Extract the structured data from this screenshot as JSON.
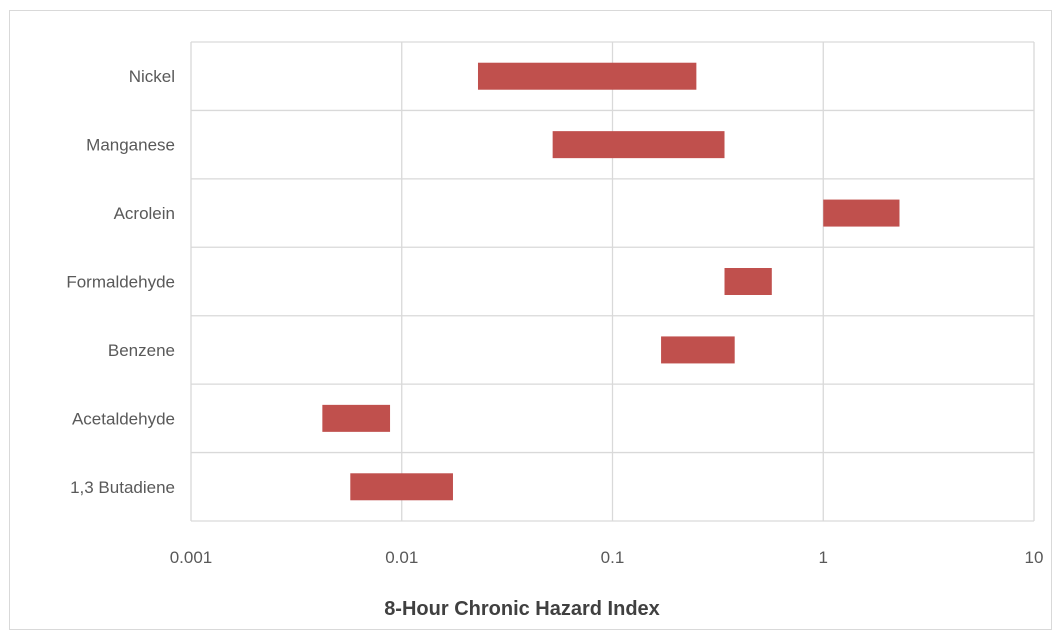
{
  "chart_data": {
    "type": "bar",
    "orientation": "horizontal",
    "subtype": "floating-range",
    "title": "",
    "xlabel": "8-Hour Chronic Hazard Index",
    "ylabel": "",
    "x_scale": "log",
    "xlim": [
      0.001,
      10
    ],
    "x_ticks": [
      0.001,
      0.01,
      0.1,
      1,
      10
    ],
    "x_tick_labels": [
      "0.001",
      "0.01",
      "0.1",
      "1",
      "10"
    ],
    "grid": true,
    "legend": "none",
    "bar_color": "#c0504d",
    "categories": [
      "Nickel",
      "Manganese",
      "Acrolein",
      "Formaldehyde",
      "Benzene",
      "Acetaldehyde",
      "1,3 Butadiene"
    ],
    "ranges": [
      [
        0.023,
        0.25
      ],
      [
        0.052,
        0.34
      ],
      [
        1.0,
        2.3
      ],
      [
        0.34,
        0.57
      ],
      [
        0.17,
        0.38
      ],
      [
        0.0042,
        0.0088
      ],
      [
        0.0057,
        0.0175
      ]
    ]
  }
}
